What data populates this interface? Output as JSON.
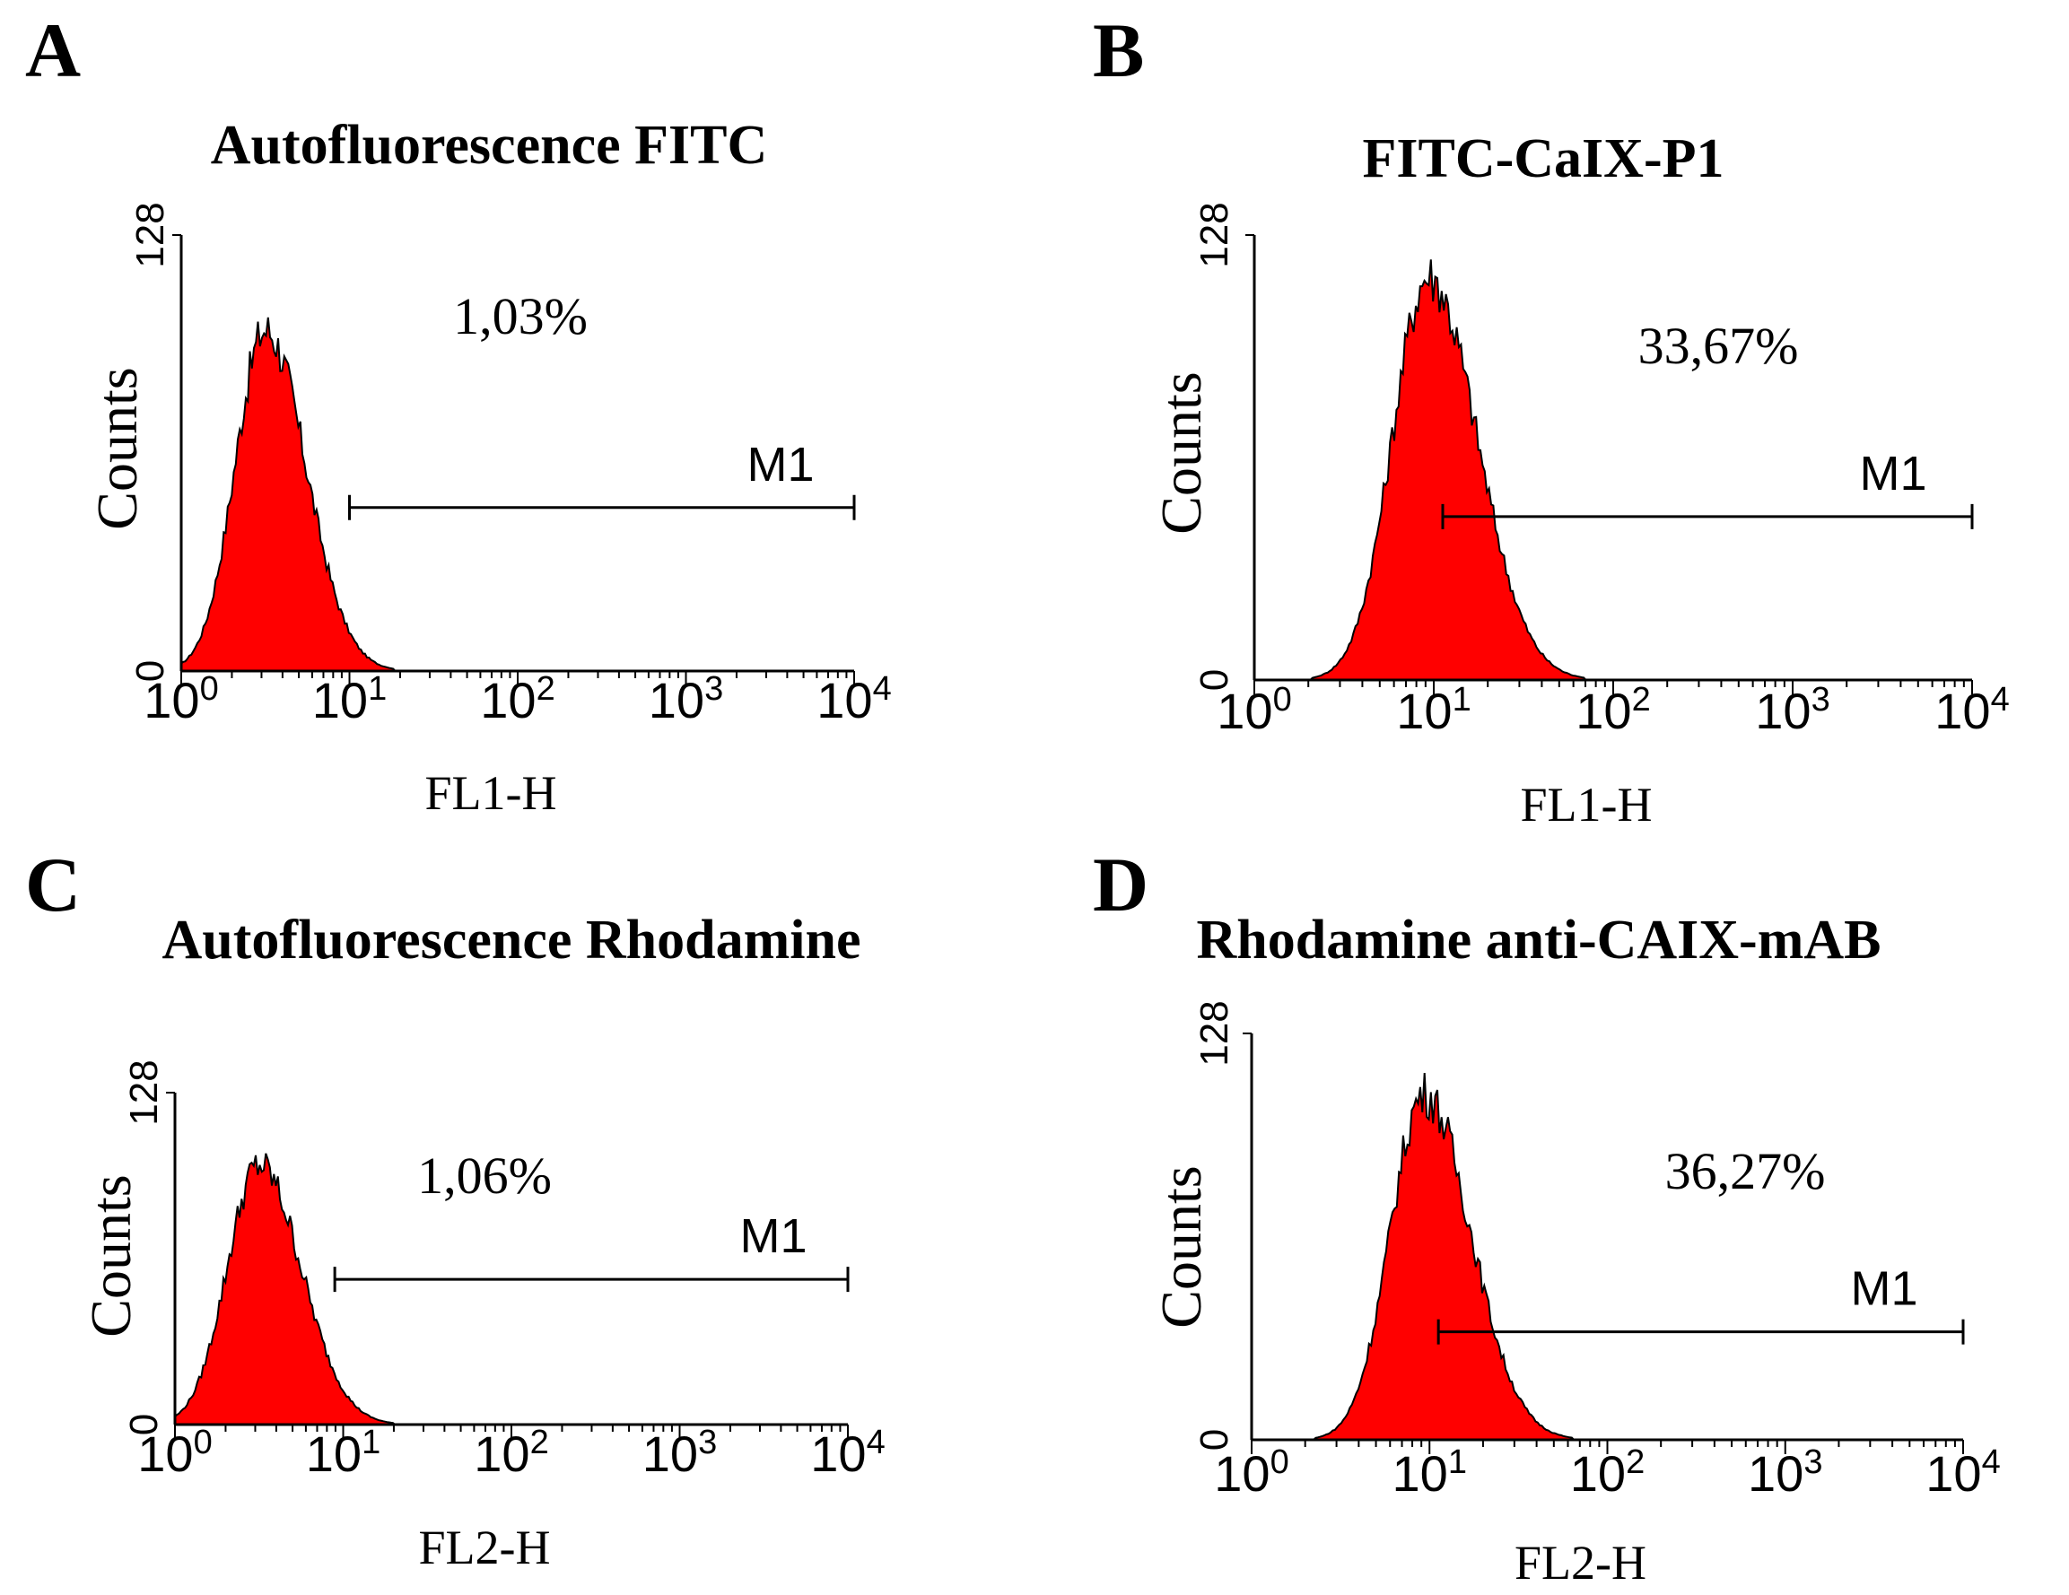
{
  "chart_data": [
    {
      "type": "histogram",
      "panel": "A",
      "title": "Autofluorescence FITC",
      "xlabel": "FL1-H",
      "ylabel": "Counts",
      "x_scale": "log",
      "x_ticks": [
        {
          "base": "10",
          "exp": "0"
        },
        {
          "base": "10",
          "exp": "1"
        },
        {
          "base": "10",
          "exp": "2"
        },
        {
          "base": "10",
          "exp": "3"
        },
        {
          "base": "10",
          "exp": "4"
        }
      ],
      "xlim": [
        0,
        4
      ],
      "ylim": [
        0,
        128
      ],
      "y_ticks": [
        "0",
        "128"
      ],
      "peak_log": 0.5,
      "peak_count": 100,
      "sigma_left": 0.18,
      "sigma_right": 0.24,
      "color": "#ff0000",
      "marker": {
        "label": "M1",
        "start_log": 1.0,
        "end_log": 4.0,
        "level": 48
      },
      "percent_label": "1,03%"
    },
    {
      "type": "histogram",
      "panel": "B",
      "title": "FITC-CaIX-P1",
      "xlabel": "FL1-H",
      "ylabel": "Counts",
      "x_scale": "log",
      "x_ticks": [
        {
          "base": "10",
          "exp": "0"
        },
        {
          "base": "10",
          "exp": "1"
        },
        {
          "base": "10",
          "exp": "2"
        },
        {
          "base": "10",
          "exp": "3"
        },
        {
          "base": "10",
          "exp": "4"
        }
      ],
      "xlim": [
        0,
        4
      ],
      "ylim": [
        0,
        128
      ],
      "y_ticks": [
        "0",
        "128"
      ],
      "peak_log": 0.97,
      "peak_count": 116,
      "sigma_left": 0.2,
      "sigma_right": 0.27,
      "color": "#ff0000",
      "marker": {
        "label": "M1",
        "start_log": 1.05,
        "end_log": 4.0,
        "level": 47
      },
      "percent_label": "33,67%"
    },
    {
      "type": "histogram",
      "panel": "C",
      "title": "Autofluorescence Rhodamine",
      "xlabel": "FL2-H",
      "ylabel": "Counts",
      "x_scale": "log",
      "x_ticks": [
        {
          "base": "10",
          "exp": "0"
        },
        {
          "base": "10",
          "exp": "1"
        },
        {
          "base": "10",
          "exp": "2"
        },
        {
          "base": "10",
          "exp": "3"
        },
        {
          "base": "10",
          "exp": "4"
        }
      ],
      "xlim": [
        0,
        4
      ],
      "ylim": [
        0,
        128
      ],
      "y_ticks": [
        "0",
        "128"
      ],
      "peak_log": 0.5,
      "peak_count": 100,
      "sigma_left": 0.19,
      "sigma_right": 0.25,
      "color": "#ff0000",
      "marker": {
        "label": "M1",
        "start_log": 0.95,
        "end_log": 4.0,
        "level": 56
      },
      "percent_label": "1,06%"
    },
    {
      "type": "histogram",
      "panel": "D",
      "title": "Rhodamine anti-CAIX-mAB",
      "xlabel": "FL2-H",
      "ylabel": "Counts",
      "x_scale": "log",
      "x_ticks": [
        {
          "base": "10",
          "exp": "0"
        },
        {
          "base": "10",
          "exp": "1"
        },
        {
          "base": "10",
          "exp": "2"
        },
        {
          "base": "10",
          "exp": "3"
        },
        {
          "base": "10",
          "exp": "4"
        }
      ],
      "xlim": [
        0,
        4
      ],
      "ylim": [
        0,
        128
      ],
      "y_ticks": [
        "0",
        "128"
      ],
      "peak_log": 0.97,
      "peak_count": 109,
      "sigma_left": 0.19,
      "sigma_right": 0.26,
      "color": "#ff0000",
      "marker": {
        "label": "M1",
        "start_log": 1.05,
        "end_log": 4.0,
        "level": 34
      },
      "percent_label": "36,27%"
    }
  ]
}
